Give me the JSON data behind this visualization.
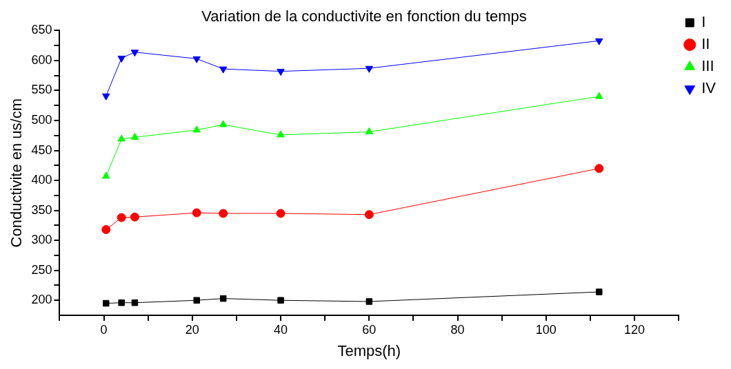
{
  "chart_data": {
    "type": "line",
    "title": "Variation de la conductivite en fonction du temps",
    "xlabel": "Temps(h)",
    "ylabel": "Conductivite en us/cm",
    "x": [
      0.5,
      4,
      7,
      21,
      27,
      40,
      60,
      112
    ],
    "xlim": [
      -10,
      130
    ],
    "xticks": [
      {
        "value": -10,
        "label": null
      },
      0,
      {
        "value": 10,
        "label": null
      },
      20,
      {
        "value": 30,
        "label": null
      },
      40,
      {
        "value": 50,
        "label": null
      },
      60,
      {
        "value": 70,
        "label": null
      },
      80,
      {
        "value": 90,
        "label": null
      },
      100,
      {
        "value": 110,
        "label": null
      },
      120,
      {
        "value": 130,
        "label": null
      }
    ],
    "ylim": [
      175,
      650
    ],
    "yticks": [
      200,
      {
        "value": 225,
        "label": null
      },
      250,
      {
        "value": 275,
        "label": null
      },
      300,
      {
        "value": 325,
        "label": null
      },
      350,
      {
        "value": 375,
        "label": null
      },
      400,
      {
        "value": 425,
        "label": null
      },
      450,
      {
        "value": 475,
        "label": null
      },
      500,
      {
        "value": 525,
        "label": null
      },
      550,
      {
        "value": 575,
        "label": null
      },
      600,
      {
        "value": 625,
        "label": null
      },
      650
    ],
    "grid": false,
    "legend": "top right",
    "line_style": "solid",
    "series": [
      {
        "name": "I",
        "color": "#000000",
        "marker": "square",
        "values": [
          195,
          196,
          196,
          200,
          203,
          200,
          198,
          214
        ]
      },
      {
        "name": "II",
        "color": "#ff0000",
        "marker": "circle",
        "values": [
          318,
          338,
          339,
          346,
          345,
          345,
          343,
          420
        ]
      },
      {
        "name": "III",
        "color": "#00ff00",
        "marker": "triangle",
        "values": [
          407,
          469,
          472,
          484,
          493,
          476,
          481,
          540
        ]
      },
      {
        "name": "IV",
        "color": "#0000ff",
        "marker": "triangle-down",
        "values": [
          541,
          604,
          614,
          603,
          586,
          582,
          587,
          633
        ]
      }
    ]
  }
}
